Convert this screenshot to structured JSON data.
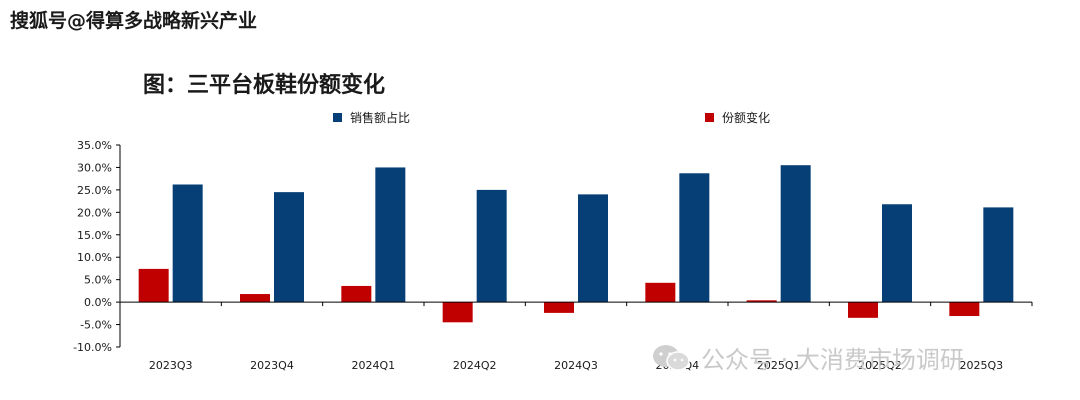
{
  "header": {
    "source_tag": "搜狐号@得算多战略新兴产业"
  },
  "watermark": {
    "text": "公众号 · 大消费市场调研",
    "icon": "wechat-icon"
  },
  "colors": {
    "series1": "#063f76",
    "series2": "#c00000",
    "axis": "#000000"
  },
  "chart_data": {
    "type": "bar",
    "title": "图：三平台板鞋份额变化",
    "xlabel": "",
    "ylabel": "",
    "categories": [
      "2023Q3",
      "2023Q4",
      "2024Q1",
      "2024Q2",
      "2024Q3",
      "2024Q4",
      "2025Q1",
      "2025Q2",
      "2025Q3"
    ],
    "series": [
      {
        "name": "销售额占比",
        "values": [
          26.2,
          24.5,
          30.0,
          25.0,
          24.0,
          28.7,
          30.5,
          21.8,
          21.1
        ]
      },
      {
        "name": "份额变化",
        "values": [
          7.4,
          1.8,
          3.6,
          -4.5,
          -2.4,
          4.3,
          0.4,
          -3.5,
          -3.1
        ]
      }
    ],
    "ylim": [
      -10,
      35
    ],
    "yticks": [
      -10,
      -5,
      0,
      5,
      10,
      15,
      20,
      25,
      30,
      35
    ],
    "ytick_format": "percent_1dp",
    "legend_position": "top",
    "grid": false
  }
}
